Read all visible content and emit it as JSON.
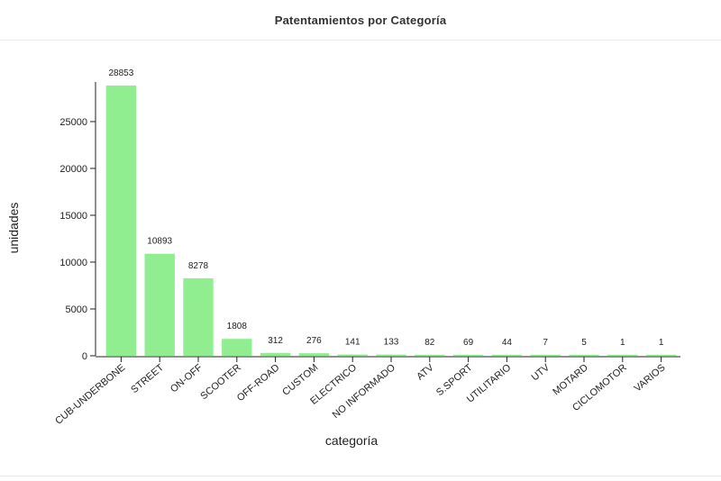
{
  "header": {
    "title": "Patentamientos por Categoría"
  },
  "colors": {
    "bar": "#90ee90",
    "axis": "#222222",
    "text": "#222222"
  },
  "chart_data": {
    "type": "bar",
    "title": "Patentamientos por Categoría",
    "xlabel": "categoría",
    "ylabel": "unidades",
    "categories": [
      "CUB-UNDERBONE",
      "STREET",
      "ON-OFF",
      "SCOOTER",
      "OFF-ROAD",
      "CUSTOM",
      "ELECTRICO",
      "NO INFORMADO",
      "ATV",
      "S.SPORT",
      "UTILITARIO",
      "UTV",
      "MOTARD",
      "CICLOMOTOR",
      "VARIOS"
    ],
    "values": [
      28853,
      10893,
      8278,
      1808,
      312,
      276,
      141,
      133,
      82,
      69,
      44,
      7,
      5,
      1,
      1
    ],
    "value_labels": [
      "28853",
      "10893",
      "8278",
      "1808",
      "312",
      "276",
      "141",
      "133",
      "82",
      "69",
      "44",
      "7",
      "5",
      "1",
      "1"
    ],
    "yticks": [
      0,
      5000,
      10000,
      15000,
      20000,
      25000
    ],
    "ytick_labels": [
      "0",
      "5000",
      "10000",
      "15000",
      "20000",
      "25000"
    ],
    "ylim": [
      0,
      29000
    ],
    "grid": false,
    "legend": "none"
  }
}
